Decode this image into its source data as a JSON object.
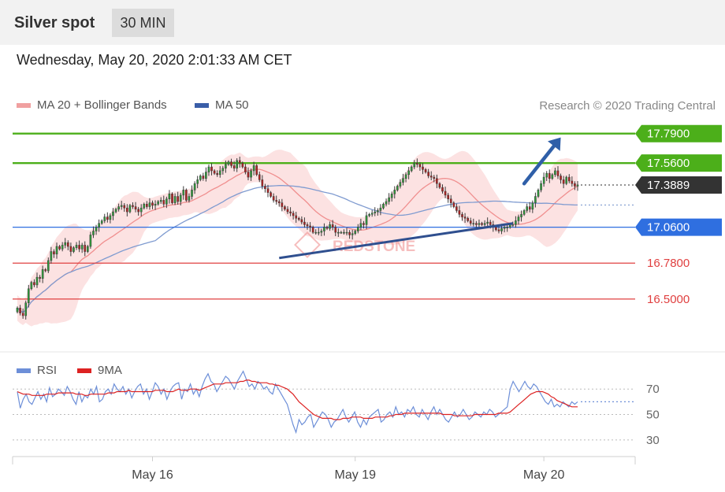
{
  "header": {
    "title": "Silver spot",
    "timeframe": "30 MIN"
  },
  "timestamp": "Wednesday, May 20, 2020 2:01:33 AM CET",
  "legend": {
    "ma20": {
      "label": "MA 20 + Bollinger Bands",
      "color": "#f0a0a0"
    },
    "ma50": {
      "label": "MA 50",
      "color": "#3a5ea8"
    }
  },
  "credit": "Research © 2020 Trading Central",
  "watermark": "REDSTONE",
  "rsi_legend": {
    "rsi": {
      "label": "RSI",
      "color": "#6d8fd8"
    },
    "ma9": {
      "label": "9MA",
      "color": "#dd2222"
    }
  },
  "chart_data": {
    "type": "candlestick",
    "price_ylim": [
      16.1,
      17.96
    ],
    "levels": [
      {
        "value": 17.79,
        "label": "17.7900",
        "kind": "resistance",
        "color": "#4caf1a"
      },
      {
        "value": 17.56,
        "label": "17.5600",
        "kind": "resistance",
        "color": "#4caf1a"
      },
      {
        "value": 17.3889,
        "label": "17.3889",
        "kind": "last",
        "color": "#333333"
      },
      {
        "value": 17.06,
        "label": "17.0600",
        "kind": "pivot",
        "color": "#2f6fe0"
      },
      {
        "value": 16.78,
        "label": "16.7800",
        "kind": "support",
        "color": "#e04040"
      },
      {
        "value": 16.5,
        "label": "16.5000",
        "kind": "support",
        "color": "#e04040"
      }
    ],
    "closes": [
      16.43,
      16.39,
      16.37,
      16.47,
      16.58,
      16.63,
      16.61,
      16.67,
      16.66,
      16.73,
      16.72,
      16.8,
      16.87,
      16.85,
      16.91,
      16.89,
      16.92,
      16.94,
      16.91,
      16.87,
      16.9,
      16.92,
      16.89,
      16.92,
      16.87,
      16.91,
      17.0,
      17.03,
      17.06,
      17.09,
      17.11,
      17.14,
      17.12,
      17.15,
      17.18,
      17.2,
      17.22,
      17.23,
      17.21,
      17.18,
      17.23,
      17.22,
      17.2,
      17.18,
      17.21,
      17.24,
      17.22,
      17.25,
      17.23,
      17.24,
      17.26,
      17.27,
      17.24,
      17.28,
      17.32,
      17.25,
      17.3,
      17.26,
      17.31,
      17.35,
      17.27,
      17.3,
      17.35,
      17.4,
      17.43,
      17.46,
      17.44,
      17.49,
      17.53,
      17.5,
      17.48,
      17.47,
      17.5,
      17.52,
      17.55,
      17.57,
      17.54,
      17.52,
      17.58,
      17.56,
      17.53,
      17.49,
      17.45,
      17.5,
      17.54,
      17.47,
      17.43,
      17.38,
      17.36,
      17.33,
      17.3,
      17.27,
      17.26,
      17.25,
      17.22,
      17.2,
      17.18,
      17.17,
      17.15,
      17.13,
      17.12,
      17.1,
      17.08,
      17.07,
      17.06,
      17.02,
      17.02,
      17.02,
      17.03,
      17.06,
      17.05,
      17.08,
      17.06,
      17.02,
      17.02,
      17.02,
      17.02,
      17.02,
      17.0,
      17.01,
      17.03,
      17.06,
      17.09,
      17.08,
      17.15,
      17.16,
      17.17,
      17.18,
      17.19,
      17.21,
      17.24,
      17.26,
      17.29,
      17.32,
      17.35,
      17.38,
      17.41,
      17.44,
      17.47,
      17.5,
      17.53,
      17.56,
      17.55,
      17.53,
      17.51,
      17.49,
      17.46,
      17.45,
      17.44,
      17.4,
      17.37,
      17.34,
      17.31,
      17.28,
      17.25,
      17.22,
      17.19,
      17.16,
      17.14,
      17.13,
      17.11,
      17.09,
      17.09,
      17.08,
      17.09,
      17.08,
      17.09,
      17.1,
      17.08,
      17.06,
      17.04,
      17.03,
      17.05,
      17.06,
      17.06,
      17.08,
      17.08,
      17.11,
      17.14,
      17.16,
      17.19,
      17.22,
      17.2,
      17.25,
      17.3,
      17.35,
      17.4,
      17.45,
      17.48,
      17.44,
      17.47,
      17.5,
      17.46,
      17.43,
      17.4,
      17.45,
      17.42,
      17.4,
      17.38,
      17.39
    ],
    "trendline": {
      "from_bar": 93,
      "from_price": 16.82,
      "to_bar": 176,
      "to_price": 17.09
    },
    "projection": {
      "from_bar": 180,
      "from_price": 17.4,
      "to_bar": 193,
      "to_price": 17.76
    },
    "rsi_ylim": [
      20,
      85
    ],
    "rsi_ticks": [
      {
        "value": 70,
        "label": "70"
      },
      {
        "value": 50,
        "label": "50"
      },
      {
        "value": 30,
        "label": "30"
      }
    ],
    "rsi_last": 60,
    "rsi": [
      68,
      55,
      62,
      66,
      60,
      58,
      63,
      68,
      62,
      66,
      60,
      71,
      64,
      66,
      70,
      68,
      65,
      72,
      68,
      62,
      58,
      68,
      60,
      65,
      63,
      70,
      66,
      72,
      60,
      62,
      68,
      70,
      66,
      74,
      70,
      68,
      72,
      66,
      70,
      63,
      68,
      72,
      74,
      66,
      70,
      62,
      68,
      75,
      72,
      66,
      70,
      62,
      68,
      72,
      74,
      75,
      62,
      70,
      68,
      74,
      66,
      70,
      64,
      72,
      78,
      82,
      76,
      74,
      68,
      72,
      76,
      80,
      78,
      74,
      70,
      76,
      80,
      84,
      78,
      72,
      74,
      70,
      76,
      74,
      70,
      72,
      68,
      66,
      74,
      70,
      66,
      62,
      58,
      50,
      42,
      36,
      46,
      42,
      44,
      48,
      50,
      40,
      44,
      48,
      52,
      50,
      46,
      40,
      44,
      46,
      50,
      54,
      48,
      44,
      48,
      52,
      44,
      40,
      46,
      42,
      48,
      50,
      52,
      54,
      44,
      46,
      50,
      52,
      48,
      56,
      50,
      52,
      48,
      54,
      52,
      56,
      50,
      48,
      54,
      50,
      46,
      52,
      56,
      50,
      54,
      50,
      46,
      44,
      48,
      52,
      48,
      50,
      54,
      50,
      46,
      48,
      52,
      50,
      48,
      52,
      50,
      54,
      52,
      48,
      50,
      52,
      54,
      56,
      70,
      76,
      72,
      68,
      72,
      76,
      72,
      70,
      74,
      72,
      68,
      64,
      60,
      58,
      62,
      56,
      58,
      56,
      60,
      58,
      56,
      60,
      58,
      60
    ],
    "ma9": [
      68,
      67,
      66,
      66,
      66,
      65,
      65,
      65,
      65,
      65,
      66,
      66,
      66,
      66,
      67,
      67,
      67,
      67,
      67,
      67,
      66,
      66,
      66,
      65,
      65,
      66,
      66,
      66,
      66,
      66,
      66,
      67,
      67,
      67,
      68,
      68,
      68,
      68,
      69,
      68,
      68,
      68,
      68,
      68,
      68,
      68,
      68,
      69,
      69,
      69,
      69,
      68,
      68,
      68,
      69,
      70,
      69,
      69,
      69,
      70,
      70,
      70,
      69,
      70,
      71,
      72,
      73,
      74,
      74,
      74,
      74,
      75,
      75,
      75,
      75,
      75,
      76,
      76,
      77,
      77,
      76,
      76,
      75,
      75,
      75,
      75,
      74,
      74,
      73,
      73,
      72,
      71,
      70,
      68,
      66,
      63,
      60,
      58,
      56,
      54,
      52,
      50,
      49,
      48,
      47,
      47,
      47,
      47,
      46,
      46,
      46,
      47,
      47,
      47,
      48,
      48,
      48,
      48,
      47,
      47,
      47,
      47,
      48,
      48,
      48,
      48,
      48,
      49,
      49,
      50,
      50,
      50,
      51,
      51,
      51,
      51,
      51,
      51,
      51,
      51,
      51,
      51,
      51,
      51,
      51,
      50,
      50,
      50,
      50,
      49,
      49,
      49,
      49,
      49,
      49,
      49,
      50,
      50,
      50,
      50,
      50,
      50,
      50,
      50,
      51,
      51,
      51,
      51,
      52,
      54,
      56,
      58,
      60,
      62,
      64,
      66,
      67,
      68,
      68,
      68,
      67,
      66,
      64,
      63,
      61,
      60,
      59,
      58,
      57,
      56,
      56,
      56
    ],
    "x_ticks": [
      {
        "bar": 48,
        "label": "May 16"
      },
      {
        "bar": 120,
        "label": "May 19"
      },
      {
        "bar": 187,
        "label": "May 20"
      }
    ]
  }
}
